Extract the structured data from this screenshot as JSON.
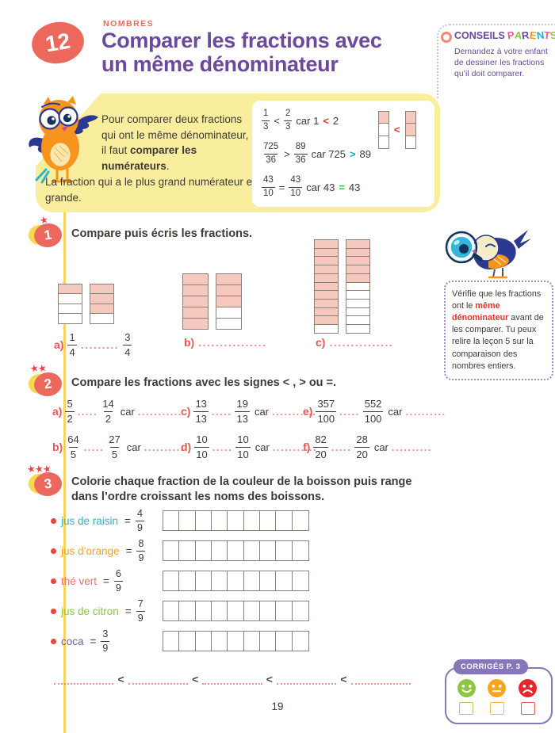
{
  "header": {
    "lesson_number": "12",
    "category": "NOMBRES",
    "title_line1": "Comparer les fractions avec",
    "title_line2": "un même dénominateur"
  },
  "conseils_parents": {
    "heading": "CONSEILS",
    "parents_letters": [
      {
        "ch": "P",
        "color": "#e85aa0"
      },
      {
        "ch": "A",
        "color": "#8cc63f"
      },
      {
        "ch": "R",
        "color": "#6b4a9e"
      },
      {
        "ch": "E",
        "color": "#f7941d"
      },
      {
        "ch": "N",
        "color": "#27aae1"
      },
      {
        "ch": "T",
        "color": "#e85aa0"
      },
      {
        "ch": "S",
        "color": "#8cc63f"
      }
    ],
    "body": "Demandez à votre enfant de dessiner les fractions qu’il doit comparer."
  },
  "lesson_box": {
    "intro_before": "Pour comparer deux fractions qui ont le même dénominateur, il faut ",
    "intro_bold": "comparer les numérateurs",
    "intro_end": ".",
    "rule": "La fraction qui a le plus grand numérateur est la plus grande.",
    "examples": [
      {
        "n1": "1",
        "d1": "3",
        "op": "<",
        "n2": "2",
        "d2": "3",
        "car": "car 1",
        "cmp": "<",
        "cmp_color": "#e8332a",
        "val": "2"
      },
      {
        "n1": "725",
        "d1": "36",
        "op": ">",
        "n2": "89",
        "d2": "36",
        "car": "car 725",
        "cmp": ">",
        "cmp_color": "#00afc1",
        "val": "89"
      },
      {
        "n1": "43",
        "d1": "10",
        "op": "=",
        "n2": "43",
        "d2": "10",
        "car": "car 43",
        "cmp": "=",
        "cmp_color": "#3bb54a",
        "val": "43"
      }
    ],
    "diagram": {
      "cells": 3,
      "left_filled": 1,
      "right_filled": 2,
      "operator": "<"
    }
  },
  "exercise1": {
    "number": "1",
    "stars": 1,
    "title": "Compare puis écris les fractions.",
    "items": [
      {
        "label": "a)",
        "bars": {
          "cells": 4,
          "left_filled": 1,
          "right_filled": 3
        },
        "n1": "1",
        "d1": "4",
        "dots": ".........",
        "n2": "3",
        "d2": "4"
      },
      {
        "label": "b)",
        "bars": {
          "cells": 5,
          "left_filled": 5,
          "right_filled": 3
        },
        "dots": "................"
      },
      {
        "label": "c)",
        "bars": {
          "cells": 11,
          "left_filled": 10,
          "right_filled": 5
        },
        "dots": "..............."
      }
    ]
  },
  "side_note": {
    "before": "Vérifie que les fractions ont le ",
    "highlight": "même dénominateur",
    "after": " avant de les comparer. Tu peux relire la leçon 5 sur la comparaison des nombres entiers."
  },
  "exercise2": {
    "number": "2",
    "stars": 2,
    "title": "Compare les fractions avec les signes < , > ou =.",
    "items": [
      {
        "label": "a)",
        "n1": "5",
        "d1": "2",
        "n2": "14",
        "d2": "2",
        "dots": ".....",
        "car": "car",
        "car_dots": "..........."
      },
      {
        "label": "b)",
        "n1": "64",
        "d1": "5",
        "n2": "27",
        "d2": "5",
        "dots": ".....",
        "car": "car",
        "car_dots": "..........."
      },
      {
        "label": "c)",
        "n1": "13",
        "d1": "13",
        "n2": "19",
        "d2": "13",
        "dots": ".....",
        "car": "car",
        "car_dots": "..........."
      },
      {
        "label": "d)",
        "n1": "10",
        "d1": "10",
        "n2": "10",
        "d2": "10",
        "dots": ".....",
        "car": "car",
        "car_dots": "..........."
      },
      {
        "label": "e)",
        "n1": "357",
        "d1": "100",
        "n2": "552",
        "d2": "100",
        "dots": ".....",
        "car": "car",
        "car_dots": ".........."
      },
      {
        "label": "f)",
        "n1": "82",
        "d1": "20",
        "n2": "28",
        "d2": "20",
        "dots": ".....",
        "car": "car",
        "car_dots": ".........."
      }
    ]
  },
  "exercise3": {
    "number": "3",
    "stars": 3,
    "title_line1": "Colorie chaque fraction de la couleur de la boisson puis range",
    "title_line2": "dans l’ordre croissant les noms des boissons.",
    "equals": "=",
    "drinks": [
      {
        "name": "jus de raisin",
        "color": "#2bb5c9",
        "n": "4",
        "d": "9",
        "cells": 9
      },
      {
        "name": "jus d’orange",
        "color": "#f9a51a",
        "n": "8",
        "d": "9",
        "cells": 9
      },
      {
        "name": "thé vert",
        "color": "#f07168",
        "n": "6",
        "d": "9",
        "cells": 9
      },
      {
        "name": "jus de citron",
        "color": "#8cc63f",
        "n": "7",
        "d": "9",
        "cells": 9
      },
      {
        "name": "coca",
        "color": "#7b5aa6",
        "n": "3",
        "d": "9",
        "cells": 9
      }
    ],
    "ordering": {
      "slots": 5,
      "separator": "<"
    }
  },
  "footer": {
    "corriges_label": "CORRIGÉS P. 3",
    "smileys": [
      {
        "mood": "happy",
        "color": "#8cc63f"
      },
      {
        "mood": "neutral",
        "color": "#f9a51a"
      },
      {
        "mood": "sad",
        "color": "#e8262d"
      }
    ],
    "page_number": "19"
  },
  "colors": {
    "accent_coral": "#ec685c",
    "title_purple": "#6b4a9e",
    "lesson_yellow": "#f8ee9d",
    "bar_fill_pink": "#f6c9be",
    "answer_red": "#e8584f",
    "text_dark": "#3f3a36"
  }
}
